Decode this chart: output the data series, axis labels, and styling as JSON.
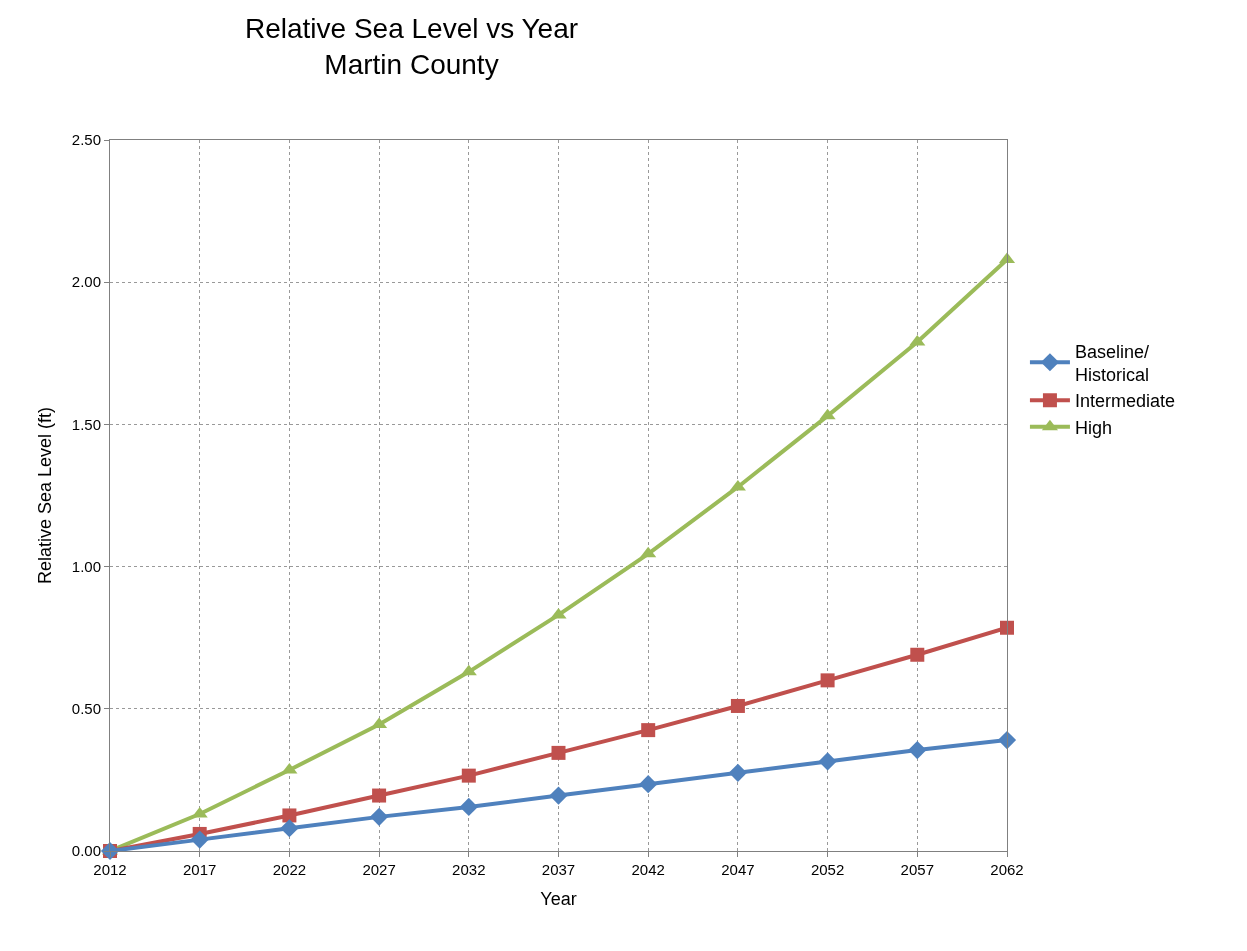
{
  "chart_data": {
    "type": "line",
    "title": "Relative Sea Level vs Year\nMartin County",
    "xlabel": "Year",
    "ylabel": "Relative Sea Level (ft)",
    "x": [
      2012,
      2017,
      2022,
      2027,
      2032,
      2037,
      2042,
      2047,
      2052,
      2057,
      2062
    ],
    "series": [
      {
        "name": "Baseline/\nHistorical",
        "color": "#4f81bd",
        "marker": "diamond",
        "values": [
          0,
          0.04,
          0.08,
          0.12,
          0.155,
          0.195,
          0.235,
          0.275,
          0.315,
          0.355,
          0.39
        ]
      },
      {
        "name": "Intermediate",
        "color": "#c0504d",
        "marker": "square",
        "values": [
          0,
          0.06,
          0.125,
          0.195,
          0.265,
          0.345,
          0.425,
          0.51,
          0.6,
          0.69,
          0.785
        ]
      },
      {
        "name": "High",
        "color": "#9bbb59",
        "marker": "triangle",
        "values": [
          0,
          0.13,
          0.285,
          0.445,
          0.63,
          0.83,
          1.045,
          1.28,
          1.53,
          1.79,
          2.08
        ]
      }
    ],
    "xlim": [
      2012,
      2062
    ],
    "xticks": [
      2012,
      2017,
      2022,
      2027,
      2032,
      2037,
      2042,
      2047,
      2052,
      2057,
      2062
    ],
    "ylim": [
      0,
      2.5
    ],
    "yticks": [
      {
        "value": 0,
        "label": "0.00"
      },
      {
        "value": 0.5,
        "label": "0.50"
      },
      {
        "value": 1,
        "label": "1.00"
      },
      {
        "value": 1.5,
        "label": "1.50"
      },
      {
        "value": 2,
        "label": "2.00"
      },
      {
        "value": 2.5,
        "label": "2.50"
      }
    ],
    "grid": true,
    "legend": "right",
    "line_style": "solid"
  }
}
